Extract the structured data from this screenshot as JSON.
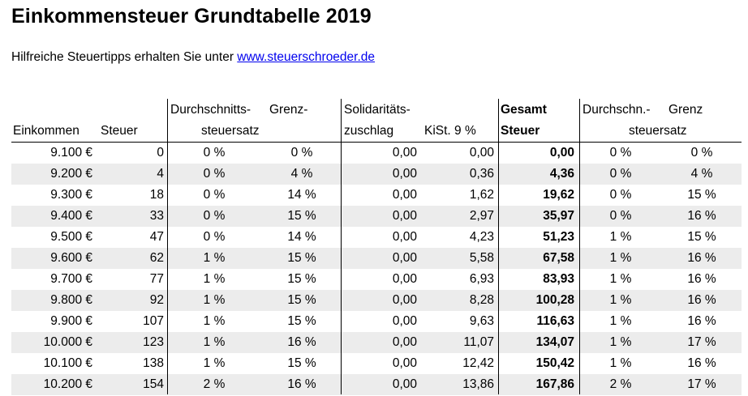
{
  "title": "Einkommensteuer Grundtabelle 2019",
  "subtitle": {
    "text": "Hilfreiche Steuertipps erhalten Sie unter ",
    "link": "www.steuerschroeder.de"
  },
  "headers": {
    "einkommen": "Einkommen",
    "steuer": "Steuer",
    "durchschnitts_line1": "Durchschnitts-",
    "grenz_line1": "Grenz-",
    "steuersatz": "steuersatz",
    "soli_line1": "Solidaritäts-",
    "soli_line2": "zuschlag",
    "kist": "KiSt. 9 %",
    "gesamt_line1": "Gesamt",
    "gesamt_line2": "Steuer",
    "durchschn2": "Durchschn.-",
    "grenz2": "Grenz",
    "steuersatz2": "steuersatz"
  },
  "rows": [
    {
      "einkommen": "9.100 €",
      "steuer": "0",
      "durchschnitt": "0 %",
      "grenz": "0 %",
      "soli": "0,00",
      "kist": "0,00",
      "gesamt": "0,00",
      "durchschn2": "0 %",
      "grenz2": "0 %"
    },
    {
      "einkommen": "9.200 €",
      "steuer": "4",
      "durchschnitt": "0 %",
      "grenz": "4 %",
      "soli": "0,00",
      "kist": "0,36",
      "gesamt": "4,36",
      "durchschn2": "0 %",
      "grenz2": "4 %"
    },
    {
      "einkommen": "9.300 €",
      "steuer": "18",
      "durchschnitt": "0 %",
      "grenz": "14 %",
      "soli": "0,00",
      "kist": "1,62",
      "gesamt": "19,62",
      "durchschn2": "0 %",
      "grenz2": "15 %"
    },
    {
      "einkommen": "9.400 €",
      "steuer": "33",
      "durchschnitt": "0 %",
      "grenz": "15 %",
      "soli": "0,00",
      "kist": "2,97",
      "gesamt": "35,97",
      "durchschn2": "0 %",
      "grenz2": "16 %"
    },
    {
      "einkommen": "9.500 €",
      "steuer": "47",
      "durchschnitt": "0 %",
      "grenz": "14 %",
      "soli": "0,00",
      "kist": "4,23",
      "gesamt": "51,23",
      "durchschn2": "1 %",
      "grenz2": "15 %"
    },
    {
      "einkommen": "9.600 €",
      "steuer": "62",
      "durchschnitt": "1 %",
      "grenz": "15 %",
      "soli": "0,00",
      "kist": "5,58",
      "gesamt": "67,58",
      "durchschn2": "1 %",
      "grenz2": "16 %"
    },
    {
      "einkommen": "9.700 €",
      "steuer": "77",
      "durchschnitt": "1 %",
      "grenz": "15 %",
      "soli": "0,00",
      "kist": "6,93",
      "gesamt": "83,93",
      "durchschn2": "1 %",
      "grenz2": "16 %"
    },
    {
      "einkommen": "9.800 €",
      "steuer": "92",
      "durchschnitt": "1 %",
      "grenz": "15 %",
      "soli": "0,00",
      "kist": "8,28",
      "gesamt": "100,28",
      "durchschn2": "1 %",
      "grenz2": "16 %"
    },
    {
      "einkommen": "9.900 €",
      "steuer": "107",
      "durchschnitt": "1 %",
      "grenz": "15 %",
      "soli": "0,00",
      "kist": "9,63",
      "gesamt": "116,63",
      "durchschn2": "1 %",
      "grenz2": "16 %"
    },
    {
      "einkommen": "10.000 €",
      "steuer": "123",
      "durchschnitt": "1 %",
      "grenz": "16 %",
      "soli": "0,00",
      "kist": "11,07",
      "gesamt": "134,07",
      "durchschn2": "1 %",
      "grenz2": "17 %"
    },
    {
      "einkommen": "10.100 €",
      "steuer": "138",
      "durchschnitt": "1 %",
      "grenz": "15 %",
      "soli": "0,00",
      "kist": "12,42",
      "gesamt": "150,42",
      "durchschn2": "1 %",
      "grenz2": "16 %"
    },
    {
      "einkommen": "10.200 €",
      "steuer": "154",
      "durchschnitt": "2 %",
      "grenz": "16 %",
      "soli": "0,00",
      "kist": "13,86",
      "gesamt": "167,86",
      "durchschn2": "2 %",
      "grenz2": "17 %"
    }
  ]
}
